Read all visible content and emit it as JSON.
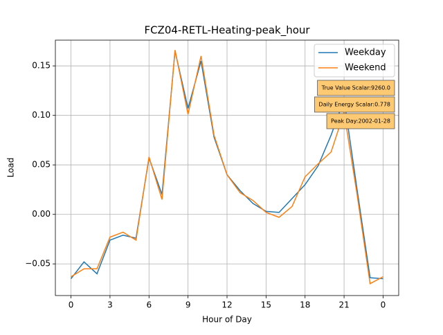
{
  "chart_data": {
    "type": "line",
    "title": "FCZ04-RETL-Heating-peak_hour",
    "x_label": "Hour of Day",
    "y_label": "Load",
    "x": [
      0,
      1,
      2,
      3,
      4,
      5,
      6,
      7,
      8,
      9,
      10,
      11,
      12,
      13,
      14,
      15,
      16,
      17,
      18,
      19,
      20,
      21,
      22,
      23,
      24
    ],
    "series": [
      {
        "name": "Weekday",
        "color": "#1f77b4",
        "values": [
          -0.065,
          -0.048,
          -0.06,
          -0.026,
          -0.021,
          -0.024,
          0.057,
          0.02,
          0.165,
          0.107,
          0.155,
          0.078,
          0.04,
          0.024,
          0.011,
          0.003,
          0.002,
          0.016,
          0.03,
          0.049,
          0.08,
          0.116,
          0.025,
          -0.064,
          -0.065
        ]
      },
      {
        "name": "Weekend",
        "color": "#ff7f0e",
        "values": [
          -0.063,
          -0.055,
          -0.055,
          -0.023,
          -0.018,
          -0.026,
          0.058,
          0.015,
          0.166,
          0.101,
          0.16,
          0.08,
          0.04,
          0.022,
          0.014,
          0.002,
          -0.003,
          0.008,
          0.038,
          0.051,
          0.063,
          0.103,
          0.02,
          -0.07,
          -0.063
        ]
      }
    ],
    "xlim": [
      -1.2,
      25.2
    ],
    "xticks": [
      0,
      3,
      6,
      9,
      12,
      15,
      18,
      21,
      {
        "value": 24,
        "label": "0"
      }
    ],
    "ylim": [
      -0.082,
      0.176
    ],
    "yticks": [
      {
        "value": -0.05,
        "label": "−0.05"
      },
      {
        "value": 0,
        "label": "0.00"
      },
      0.05,
      {
        "value": 0.1,
        "label": "0.10"
      },
      0.15
    ],
    "grid": true,
    "legend": "upper right",
    "annotations": [
      "True Value Scalar:9260.0",
      "Daily Energy Scalar:0.778",
      "Peak Day:2002-01-28"
    ]
  }
}
